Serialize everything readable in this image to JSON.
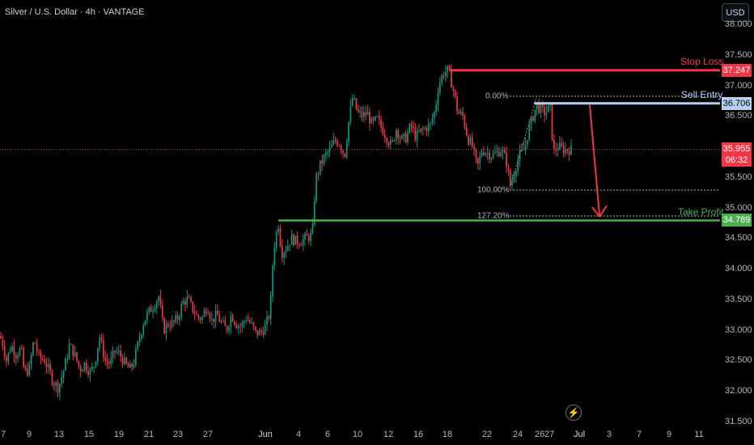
{
  "header": {
    "title": "Silver / U.S. Dollar · 4h · VANTAGE",
    "currency": "USD"
  },
  "price_axis": {
    "labels": [
      "38.000",
      "37.500",
      "37.000",
      "36.500",
      "36.000",
      "35.500",
      "35.000",
      "34.500",
      "34.000",
      "33.500",
      "33.000",
      "32.500",
      "32.000",
      "31.500"
    ]
  },
  "time_axis": {
    "labels": [
      "7",
      "9",
      "13",
      "15",
      "19",
      "21",
      "23",
      "27",
      "Jun",
      "4",
      "6",
      "10",
      "12",
      "16",
      "18",
      "22",
      "24",
      "26",
      "27",
      "Jul",
      "3",
      "7",
      "9",
      "11"
    ]
  },
  "annotations": {
    "stop_loss": {
      "label": "Stop Loss",
      "price": "37.247",
      "color": "#f23645"
    },
    "sell_entry": {
      "label": "Sell Entry.",
      "price": "36.706",
      "color": "#b5d0f0"
    },
    "take_profit": {
      "label": "Take Profit",
      "price": "34.789",
      "color": "#4caf50"
    },
    "current_price": {
      "price": "35.955",
      "countdown": "06:32",
      "color": "#f23645"
    },
    "fib_levels": [
      "0.00%",
      "100.00%",
      "127.20%"
    ]
  },
  "colors": {
    "up": "#089981",
    "down": "#f23645",
    "background": "#000000"
  },
  "chart_data": {
    "type": "candlestick",
    "symbol": "Silver / U.S. Dollar",
    "timeframe": "4h",
    "y_range": [
      31.5,
      38.0
    ],
    "price_path": [
      [
        32.9,
        0
      ],
      [
        32.75,
        4
      ],
      [
        32.5,
        8
      ],
      [
        32.75,
        14
      ],
      [
        32.6,
        20
      ],
      [
        32.7,
        26
      ],
      [
        32.3,
        30
      ],
      [
        32.35,
        36
      ],
      [
        32.85,
        42
      ],
      [
        32.55,
        48
      ],
      [
        32.5,
        55
      ],
      [
        32.35,
        60
      ],
      [
        32.15,
        66
      ],
      [
        32.05,
        72
      ],
      [
        32.4,
        80
      ],
      [
        32.75,
        86
      ],
      [
        32.6,
        92
      ],
      [
        32.35,
        99
      ],
      [
        32.45,
        104
      ],
      [
        32.3,
        112
      ],
      [
        32.45,
        117
      ],
      [
        32.9,
        123
      ],
      [
        32.5,
        130
      ],
      [
        32.45,
        136
      ],
      [
        32.65,
        142
      ],
      [
        32.6,
        148
      ],
      [
        32.45,
        154
      ],
      [
        32.35,
        160
      ],
      [
        32.45,
        165
      ],
      [
        32.85,
        172
      ],
      [
        33.15,
        178
      ],
      [
        33.3,
        184
      ],
      [
        33.4,
        190
      ],
      [
        33.55,
        196
      ],
      [
        33.0,
        202
      ],
      [
        33.1,
        208
      ],
      [
        33.1,
        214
      ],
      [
        33.2,
        220
      ],
      [
        33.45,
        226
      ],
      [
        33.5,
        232
      ],
      [
        33.35,
        238
      ],
      [
        33.2,
        244
      ],
      [
        33.2,
        250
      ],
      [
        33.4,
        256
      ],
      [
        33.15,
        262
      ],
      [
        33.25,
        268
      ],
      [
        33.1,
        274
      ],
      [
        33.0,
        280
      ],
      [
        33.25,
        286
      ],
      [
        33.1,
        292
      ],
      [
        33.05,
        298
      ],
      [
        33.2,
        304
      ],
      [
        33.1,
        310
      ],
      [
        32.95,
        316
      ],
      [
        32.95,
        322
      ],
      [
        33.05,
        328
      ],
      [
        33.3,
        334
      ],
      [
        34.3,
        338
      ],
      [
        34.75,
        344
      ],
      [
        34.25,
        348
      ],
      [
        34.35,
        354
      ],
      [
        34.5,
        360
      ],
      [
        34.45,
        366
      ],
      [
        34.45,
        372
      ],
      [
        34.5,
        378
      ],
      [
        34.55,
        386
      ],
      [
        35.45,
        390
      ],
      [
        35.7,
        396
      ],
      [
        35.85,
        402
      ],
      [
        35.95,
        408
      ],
      [
        36.1,
        414
      ],
      [
        36.05,
        420
      ],
      [
        35.85,
        426
      ],
      [
        36.5,
        432
      ],
      [
        36.8,
        436
      ],
      [
        36.55,
        442
      ],
      [
        36.5,
        448
      ],
      [
        36.55,
        454
      ],
      [
        36.35,
        460
      ],
      [
        36.45,
        466
      ],
      [
        36.3,
        472
      ],
      [
        36.15,
        478
      ],
      [
        36.0,
        484
      ],
      [
        36.3,
        490
      ],
      [
        36.1,
        496
      ],
      [
        36.15,
        502
      ],
      [
        36.35,
        508
      ],
      [
        36.15,
        514
      ],
      [
        36.25,
        520
      ],
      [
        36.3,
        526
      ],
      [
        36.35,
        532
      ],
      [
        36.6,
        538
      ],
      [
        37.0,
        542
      ],
      [
        37.2,
        548
      ],
      [
        37.25,
        554
      ],
      [
        36.95,
        560
      ],
      [
        36.55,
        566
      ],
      [
        36.5,
        572
      ],
      [
        36.15,
        578
      ],
      [
        36.0,
        584
      ],
      [
        35.65,
        590
      ],
      [
        35.95,
        596
      ],
      [
        35.9,
        602
      ],
      [
        35.85,
        608
      ],
      [
        35.9,
        614
      ],
      [
        35.95,
        620
      ],
      [
        35.75,
        626
      ],
      [
        35.35,
        631
      ],
      [
        35.6,
        636
      ],
      [
        35.85,
        642
      ],
      [
        35.95,
        648
      ],
      [
        36.3,
        654
      ],
      [
        36.45,
        658
      ],
      [
        36.68,
        663
      ],
      [
        36.6,
        668
      ],
      [
        36.55,
        674
      ],
      [
        36.65,
        680
      ],
      [
        35.9,
        684
      ],
      [
        36.0,
        690
      ],
      [
        35.95,
        696
      ],
      [
        35.95,
        702
      ],
      [
        35.95,
        708
      ]
    ]
  }
}
